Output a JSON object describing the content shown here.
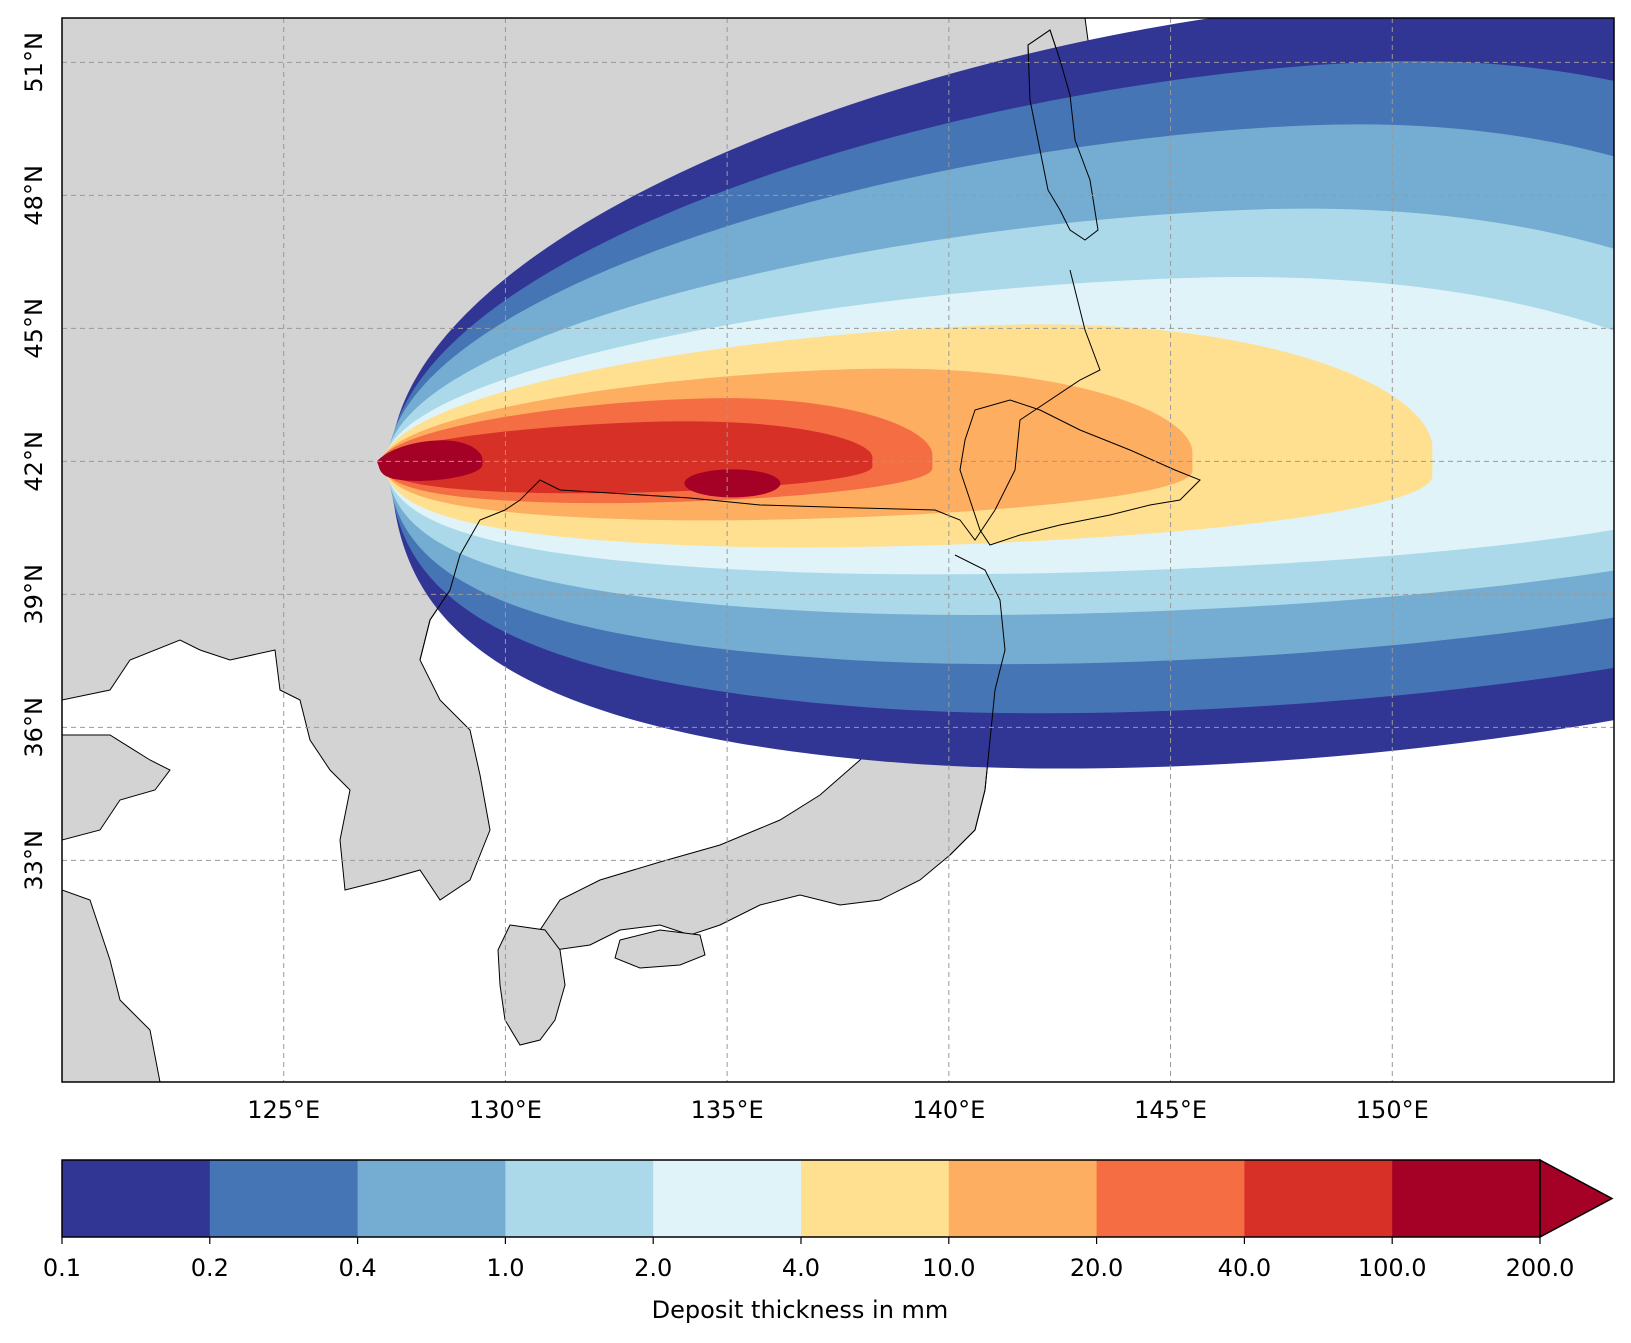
{
  "map": {
    "lon_range": [
      120,
      155
    ],
    "lat_range": [
      28,
      52
    ],
    "land_color": "#d3d3d3",
    "ocean_color": "#ffffff",
    "grid": true,
    "lon_ticks": [
      {
        "value": 125,
        "label": "125°E"
      },
      {
        "value": 130,
        "label": "130°E"
      },
      {
        "value": 135,
        "label": "135°E"
      },
      {
        "value": 140,
        "label": "140°E"
      },
      {
        "value": 145,
        "label": "145°E"
      },
      {
        "value": 150,
        "label": "150°E"
      }
    ],
    "lat_ticks": [
      {
        "value": 33,
        "label": "33°N"
      },
      {
        "value": 36,
        "label": "36°N"
      },
      {
        "value": 39,
        "label": "39°N"
      },
      {
        "value": 42,
        "label": "42°N"
      },
      {
        "value": 45,
        "label": "45°N"
      },
      {
        "value": 48,
        "label": "48°N"
      },
      {
        "value": 51,
        "label": "51°N"
      }
    ]
  },
  "chart_data": {
    "type": "heatmap",
    "variable_label": "Deposit thickness in mm",
    "levels": [
      0.1,
      0.2,
      0.4,
      1.0,
      2.0,
      4.0,
      10.0,
      20.0,
      40.0,
      100.0,
      200.0
    ],
    "level_labels": [
      "0.1",
      "0.2",
      "0.4",
      "1.0",
      "2.0",
      "4.0",
      "10.0",
      "20.0",
      "40.0",
      "100.0",
      "200.0"
    ],
    "colors": [
      "#313695",
      "#4575b4",
      "#74add1",
      "#abd9e9",
      "#e0f3f8",
      "#fee090",
      "#fdae61",
      "#f46d43",
      "#d73027",
      "#a50026"
    ],
    "extend": "max",
    "source_lonlat": [
      127.0,
      42.0
    ],
    "plume_axis": "eastward, slight north tilt",
    "colorbar_position": "bottom"
  }
}
